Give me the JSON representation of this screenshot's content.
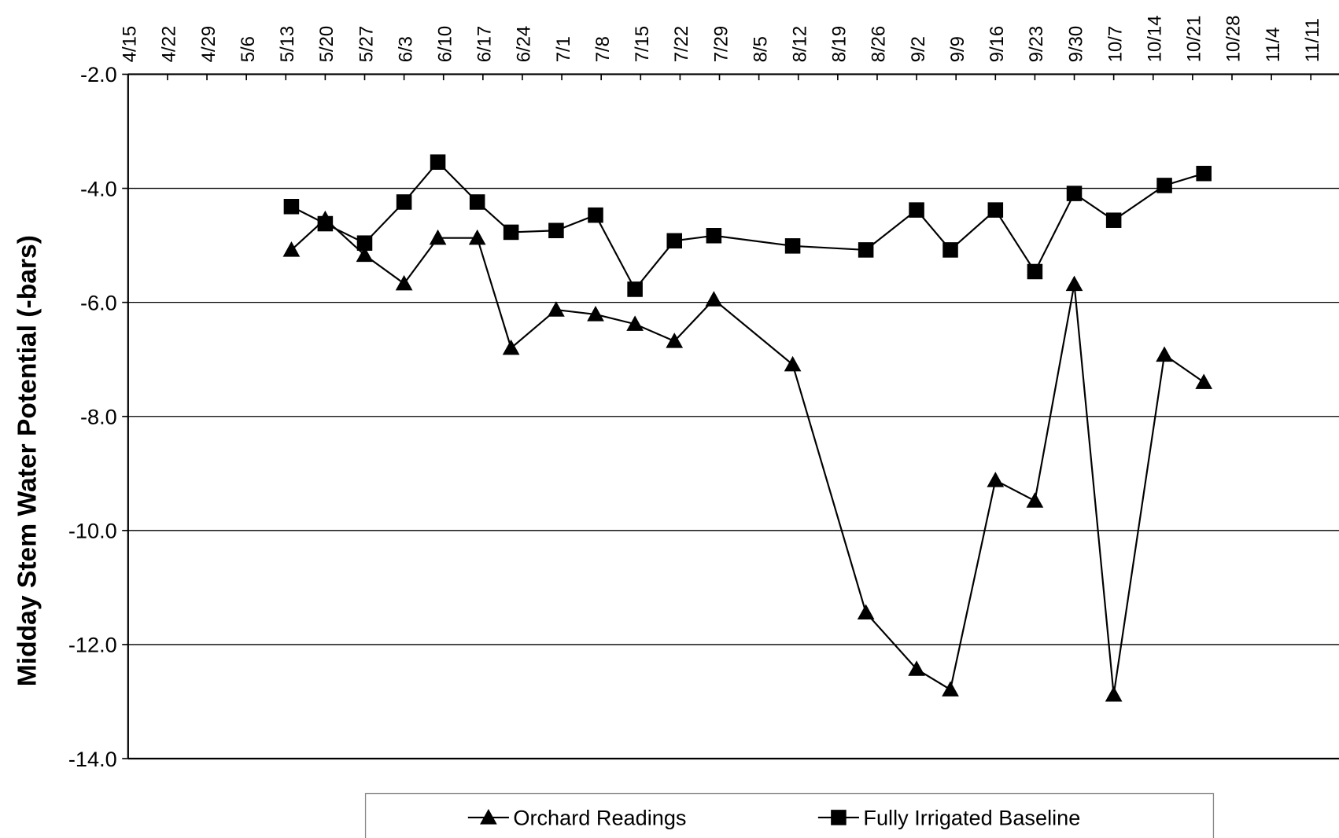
{
  "chart_data": {
    "type": "line",
    "y_label": "Midday Stem Water Potential (-bars)",
    "x": [
      134,
      140,
      147,
      154,
      160,
      167,
      173,
      181,
      188,
      195,
      202,
      209,
      223,
      236,
      245,
      251,
      259,
      266,
      273,
      280,
      289,
      296
    ],
    "series": [
      {
        "name": "Orchard Readings",
        "color": "#000000",
        "marker": "triangle",
        "values": [
          -5.08,
          -4.54,
          -5.17,
          -5.67,
          -4.87,
          -4.87,
          -6.8,
          -6.13,
          -6.21,
          -6.38,
          -6.68,
          -5.95,
          -7.09,
          -11.44,
          -12.43,
          -12.79,
          -9.12,
          -9.48,
          -5.68,
          -12.88,
          -6.92,
          -7.4
        ]
      },
      {
        "name": "Fully Irrigated Baseline",
        "color": "#000000",
        "marker": "square",
        "values": [
          -4.32,
          -4.62,
          -4.96,
          -4.24,
          -3.54,
          -4.24,
          -4.77,
          -4.74,
          -4.47,
          -5.77,
          -4.92,
          -4.83,
          -5.01,
          -5.08,
          -4.38,
          -5.08,
          -4.38,
          -5.46,
          -4.09,
          -4.56,
          -3.95,
          -3.74
        ]
      }
    ],
    "xlim": [
      105,
      320
    ],
    "xticks": [
      {
        "value": 105,
        "label": "4/15"
      },
      {
        "value": 112,
        "label": "4/22"
      },
      {
        "value": 119,
        "label": "4/29"
      },
      {
        "value": 126,
        "label": "5/6"
      },
      {
        "value": 133,
        "label": "5/13"
      },
      {
        "value": 140,
        "label": "5/20"
      },
      {
        "value": 147,
        "label": "5/27"
      },
      {
        "value": 154,
        "label": "6/3"
      },
      {
        "value": 161,
        "label": "6/10"
      },
      {
        "value": 168,
        "label": "6/17"
      },
      {
        "value": 175,
        "label": "6/24"
      },
      {
        "value": 182,
        "label": "7/1"
      },
      {
        "value": 189,
        "label": "7/8"
      },
      {
        "value": 196,
        "label": "7/15"
      },
      {
        "value": 203,
        "label": "7/22"
      },
      {
        "value": 210,
        "label": "7/29"
      },
      {
        "value": 217,
        "label": "8/5"
      },
      {
        "value": 224,
        "label": "8/12"
      },
      {
        "value": 231,
        "label": "8/19"
      },
      {
        "value": 238,
        "label": "8/26"
      },
      {
        "value": 245,
        "label": "9/2"
      },
      {
        "value": 252,
        "label": "9/9"
      },
      {
        "value": 259,
        "label": "9/16"
      },
      {
        "value": 266,
        "label": "9/23"
      },
      {
        "value": 273,
        "label": "9/30"
      },
      {
        "value": 280,
        "label": "10/7"
      },
      {
        "value": 287,
        "label": "10/14"
      },
      {
        "value": 294,
        "label": "10/21"
      },
      {
        "value": 301,
        "label": "10/28"
      },
      {
        "value": 308,
        "label": "11/4"
      },
      {
        "value": 315,
        "label": "11/11"
      }
    ],
    "ylim": [
      -14,
      -2
    ],
    "yticks": [
      {
        "value": -14,
        "label": "-14.0"
      },
      {
        "value": -12,
        "label": "-12.0"
      },
      {
        "value": -10,
        "label": "-10.0"
      },
      {
        "value": -8,
        "label": "-8.0"
      },
      {
        "value": -6,
        "label": "-6.0"
      },
      {
        "value": -4,
        "label": "-4.0"
      },
      {
        "value": -2,
        "label": "-2.0"
      }
    ],
    "grid": true,
    "legend": "bottom"
  }
}
